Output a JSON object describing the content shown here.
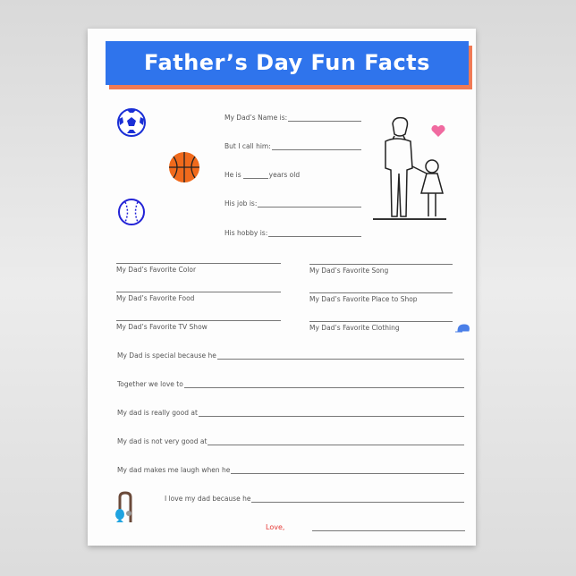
{
  "title": "Father’s Day Fun Facts",
  "top_fields": [
    {
      "label": "My Dad’s Name is:"
    },
    {
      "label": "But I call him:"
    },
    {
      "label": "He is",
      "suffix": "years old"
    },
    {
      "label": "His job is:"
    },
    {
      "label": "His hobby is:"
    }
  ],
  "favorites": [
    "My Dad’s Favorite Color",
    "My Dad’s Favorite Song",
    "My Dad’s Favorite Food",
    "My Dad’s Favorite Place to Shop",
    "My Dad’s Favorite TV Show",
    "My Dad’s Favorite Clothing"
  ],
  "sentences": [
    "My Dad is special because he",
    "Together we love to",
    "My dad is really good at",
    "My dad is not very good at",
    "My dad makes me laugh when he",
    "I love my dad because he"
  ],
  "signoff": "Love,",
  "colors": {
    "banner": "#2f74ec",
    "banner_shadow": "#f07a55",
    "love": "#e53935"
  },
  "icons": [
    "soccer-ball",
    "basketball",
    "baseball",
    "father-daughter-illustration",
    "heart",
    "cap",
    "fishing-rod-fish"
  ]
}
